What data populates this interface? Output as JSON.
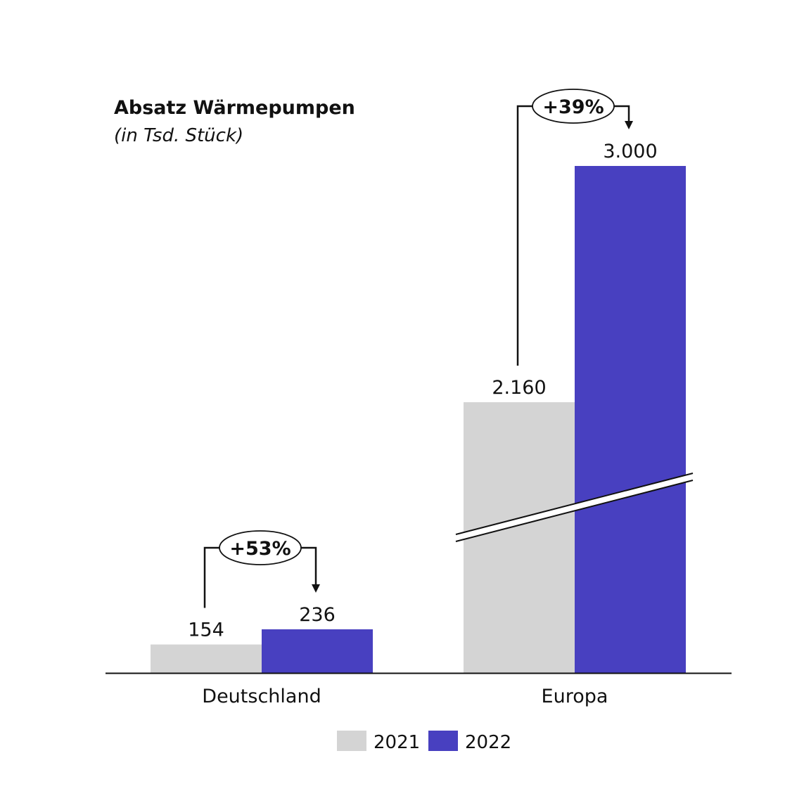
{
  "chart_data": {
    "type": "bar",
    "title": "Absatz Wärmepumpen",
    "subtitle": "(in Tsd. Stück)",
    "categories": [
      "Deutschland",
      "Europa"
    ],
    "series": [
      {
        "name": "2021",
        "values": [
          154,
          2160
        ],
        "labels": [
          "154",
          "2.160"
        ],
        "color": "#d4d4d4"
      },
      {
        "name": "2022",
        "values": [
          236,
          3000
        ],
        "labels": [
          "236",
          "3.000"
        ],
        "color": "#4840c0"
      }
    ],
    "changes": [
      "+53%",
      "+39%"
    ],
    "axis_break": "Europa",
    "legend_position": "bottom-center",
    "grid": false
  }
}
